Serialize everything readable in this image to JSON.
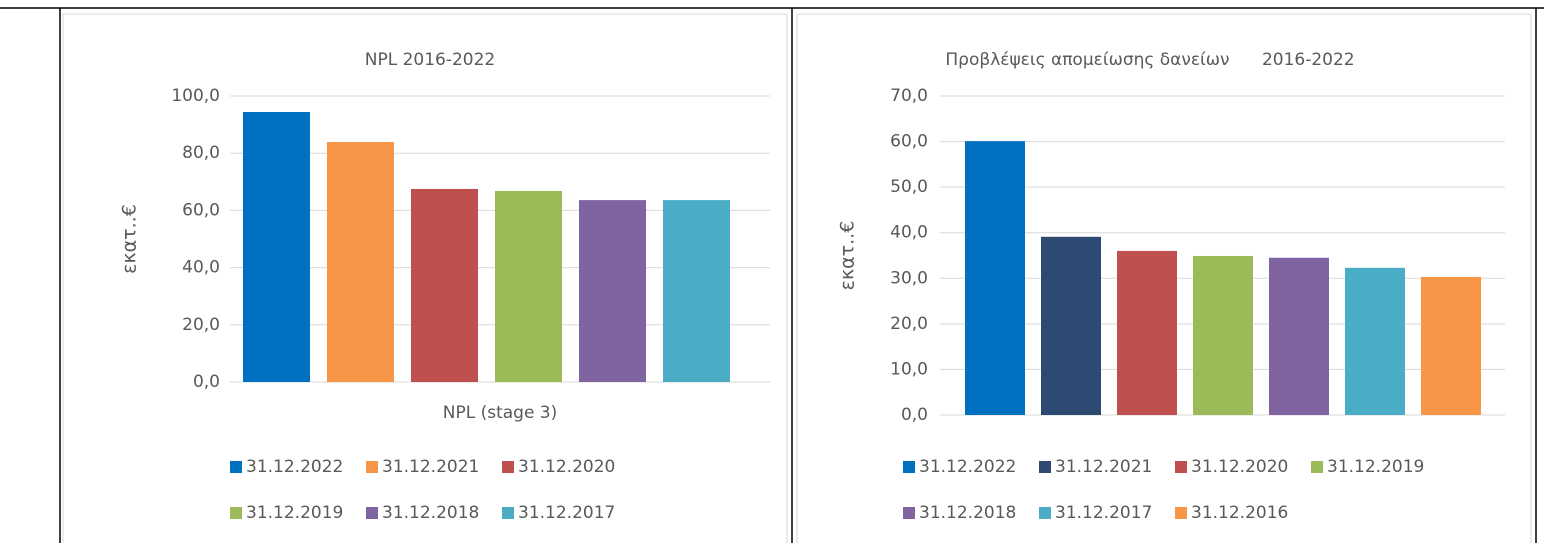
{
  "chart_data": [
    {
      "type": "bar",
      "title": "NPL 2016-2022",
      "y_label": "εκατ..€",
      "categories": [
        "NPL (stage 3)"
      ],
      "ylim": [
        0,
        100
      ],
      "yticks": [
        {
          "value": 0,
          "label": "0,0"
        },
        {
          "value": 20,
          "label": "20,0"
        },
        {
          "value": 40,
          "label": "40,0"
        },
        {
          "value": 60,
          "label": "60,0"
        },
        {
          "value": 80,
          "label": "80,0"
        },
        {
          "value": 100,
          "label": "100,0"
        }
      ],
      "grid": true,
      "legend": "bottom",
      "series": [
        {
          "name": "31.12.2022",
          "color": "#0070c0",
          "values": [
            94.4
          ]
        },
        {
          "name": "31.12.2021",
          "color": "#f79646",
          "values": [
            83.9
          ]
        },
        {
          "name": "31.12.2020",
          "color": "#c0504d",
          "values": [
            67.5
          ]
        },
        {
          "name": "31.12.2019",
          "color": "#9bbb59",
          "values": [
            66.8
          ]
        },
        {
          "name": "31.12.2018",
          "color": "#8064a2",
          "values": [
            63.6
          ]
        },
        {
          "name": "31.12.2017",
          "color": "#4bacc6",
          "values": [
            63.6
          ]
        }
      ]
    },
    {
      "type": "bar",
      "title": "Προβλέψεις απομείωσης δανείων      2016-2022",
      "y_label": "εκατ..€",
      "categories": [
        null
      ],
      "ylim": [
        0,
        70
      ],
      "yticks": [
        {
          "value": 0,
          "label": "0,0"
        },
        {
          "value": 10,
          "label": "10,0"
        },
        {
          "value": 20,
          "label": "20,0"
        },
        {
          "value": 30,
          "label": "30,0"
        },
        {
          "value": 40,
          "label": "40,0"
        },
        {
          "value": 50,
          "label": "50,0"
        },
        {
          "value": 60,
          "label": "60,0"
        },
        {
          "value": 70,
          "label": "70,0"
        }
      ],
      "grid": true,
      "legend": "bottom",
      "series": [
        {
          "name": "31.12.2022",
          "color": "#0070c0",
          "values": [
            60.1
          ]
        },
        {
          "name": "31.12.2021",
          "color": "#2e4a72",
          "values": [
            39.1
          ]
        },
        {
          "name": "31.12.2020",
          "color": "#c0504d",
          "values": [
            36.0
          ]
        },
        {
          "name": "31.12.2019",
          "color": "#9bbb59",
          "values": [
            34.9
          ]
        },
        {
          "name": "31.12.2018",
          "color": "#8064a2",
          "values": [
            34.5
          ]
        },
        {
          "name": "31.12.2017",
          "color": "#4bacc6",
          "values": [
            32.3
          ]
        },
        {
          "name": "31.12.2016",
          "color": "#f79646",
          "values": [
            30.3
          ]
        }
      ]
    }
  ]
}
